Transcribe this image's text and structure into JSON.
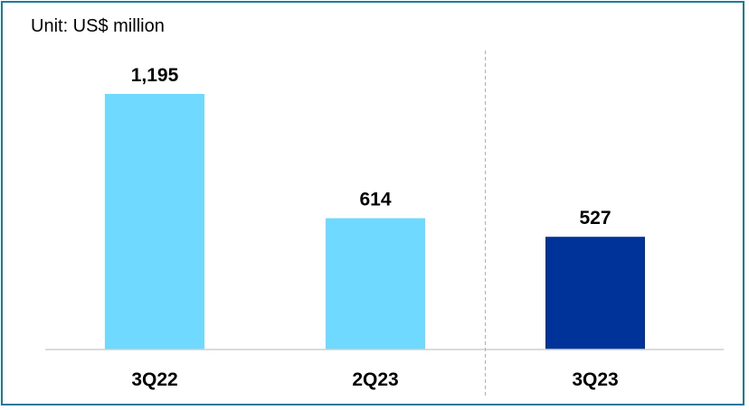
{
  "chart_data": {
    "type": "bar",
    "title": "",
    "unit_label": "Unit: US$ million",
    "categories": [
      "3Q22",
      "2Q23",
      "3Q23"
    ],
    "values": [
      1195,
      614,
      527
    ],
    "value_labels": [
      "1,195",
      "614",
      "527"
    ],
    "bar_colors": [
      "#6fd9ff",
      "#6fd9ff",
      "#003399"
    ],
    "xlabel": "",
    "ylabel": "",
    "ylim": [
      0,
      1195
    ],
    "grid": false,
    "legend": "none",
    "separator_between": [
      "2Q23",
      "3Q23"
    ]
  },
  "colors": {
    "frame_border": "#1f7a9a",
    "baseline": "#cfcfcf",
    "separator": "#b0b0b0"
  }
}
